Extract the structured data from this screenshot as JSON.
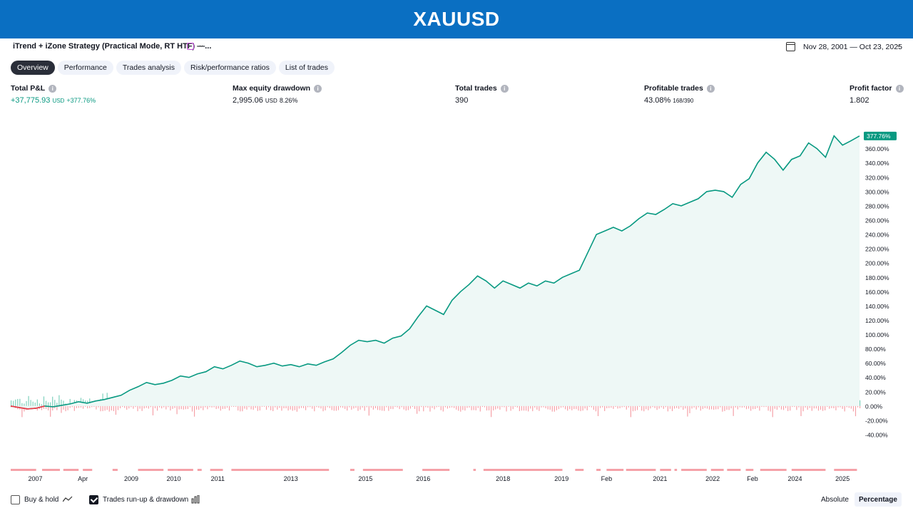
{
  "banner": {
    "title": "XAUUSD"
  },
  "strategy": {
    "name": "iTrend + iZone Strategy (Practical Mode, RT HTF) —..."
  },
  "date_range": "Nov 28, 2001 — Oct 23, 2025",
  "tabs": [
    {
      "label": "Overview",
      "active": true
    },
    {
      "label": "Performance",
      "active": false
    },
    {
      "label": "Trades analysis",
      "active": false
    },
    {
      "label": "Risk/performance ratios",
      "active": false
    },
    {
      "label": "List of trades",
      "active": false
    }
  ],
  "metrics": {
    "total_pl": {
      "label": "Total P&L",
      "value": "+37,775.93",
      "unit": "USD",
      "pct": "+377.76%"
    },
    "max_dd": {
      "label": "Max equity drawdown",
      "value": "2,995.06",
      "unit": "USD",
      "pct": "8.26%"
    },
    "total_trades": {
      "label": "Total trades",
      "value": "390"
    },
    "profitable": {
      "label": "Profitable trades",
      "value": "43.08%",
      "sub": "168/390"
    },
    "profit_factor": {
      "label": "Profit factor",
      "value": "1.802"
    }
  },
  "footer": {
    "buy_hold": "Buy & hold",
    "runup": "Trades run-up & drawdown",
    "absolute": "Absolute",
    "percentage": "Percentage"
  },
  "colors": {
    "equity": "#089981",
    "fill": "#eef8f6",
    "loss": "#f23645",
    "runup_bar": "#7fd1bd",
    "drawdown_bar": "#f5a1a8",
    "current_badge": "#089981"
  },
  "chart_data": {
    "type": "line",
    "y_unit": "%",
    "ylim": [
      -40,
      380
    ],
    "y_ticks": [
      "360.00%",
      "340.00%",
      "320.00%",
      "300.00%",
      "280.00%",
      "260.00%",
      "240.00%",
      "220.00%",
      "200.00%",
      "180.00%",
      "160.00%",
      "140.00%",
      "120.00%",
      "100.00%",
      "80.00%",
      "60.00%",
      "40.00%",
      "20.00%",
      "0.00%",
      "-20.00%",
      "-40.00%"
    ],
    "current_value_label": "377.76%",
    "x_labels": [
      {
        "label": "2007",
        "t": 0.029
      },
      {
        "label": "Apr",
        "t": 0.085
      },
      {
        "label": "2009",
        "t": 0.142
      },
      {
        "label": "2010",
        "t": 0.192
      },
      {
        "label": "2011",
        "t": 0.244
      },
      {
        "label": "2013",
        "t": 0.33
      },
      {
        "label": "2015",
        "t": 0.418
      },
      {
        "label": "2016",
        "t": 0.486
      },
      {
        "label": "2018",
        "t": 0.58
      },
      {
        "label": "2019",
        "t": 0.649
      },
      {
        "label": "Feb",
        "t": 0.702
      },
      {
        "label": "2021",
        "t": 0.765
      },
      {
        "label": "2022",
        "t": 0.827
      },
      {
        "label": "Feb",
        "t": 0.874
      },
      {
        "label": "2024",
        "t": 0.924
      },
      {
        "label": "2025",
        "t": 0.98
      }
    ],
    "series": [
      {
        "values": [
          [
            0.0,
            0
          ],
          [
            0.01,
            -2
          ],
          [
            0.02,
            -4
          ],
          [
            0.03,
            -3
          ],
          [
            0.04,
            0
          ],
          [
            0.05,
            -1
          ],
          [
            0.06,
            1
          ],
          [
            0.07,
            3
          ],
          [
            0.08,
            6
          ],
          [
            0.09,
            4
          ],
          [
            0.1,
            7
          ],
          [
            0.11,
            9
          ],
          [
            0.12,
            12
          ],
          [
            0.13,
            15
          ],
          [
            0.14,
            22
          ],
          [
            0.15,
            27
          ],
          [
            0.16,
            33
          ],
          [
            0.17,
            30
          ],
          [
            0.18,
            32
          ],
          [
            0.19,
            36
          ],
          [
            0.2,
            42
          ],
          [
            0.21,
            40
          ],
          [
            0.22,
            45
          ],
          [
            0.23,
            48
          ],
          [
            0.24,
            55
          ],
          [
            0.25,
            52
          ],
          [
            0.26,
            57
          ],
          [
            0.27,
            63
          ],
          [
            0.28,
            60
          ],
          [
            0.29,
            55
          ],
          [
            0.3,
            57
          ],
          [
            0.31,
            60
          ],
          [
            0.32,
            56
          ],
          [
            0.33,
            58
          ],
          [
            0.34,
            55
          ],
          [
            0.35,
            59
          ],
          [
            0.36,
            57
          ],
          [
            0.37,
            62
          ],
          [
            0.38,
            66
          ],
          [
            0.39,
            75
          ],
          [
            0.4,
            85
          ],
          [
            0.41,
            92
          ],
          [
            0.42,
            90
          ],
          [
            0.43,
            92
          ],
          [
            0.44,
            88
          ],
          [
            0.45,
            95
          ],
          [
            0.46,
            98
          ],
          [
            0.47,
            108
          ],
          [
            0.48,
            125
          ],
          [
            0.49,
            140
          ],
          [
            0.5,
            134
          ],
          [
            0.51,
            128
          ],
          [
            0.52,
            148
          ],
          [
            0.53,
            160
          ],
          [
            0.54,
            170
          ],
          [
            0.55,
            182
          ],
          [
            0.56,
            175
          ],
          [
            0.57,
            165
          ],
          [
            0.58,
            175
          ],
          [
            0.59,
            170
          ],
          [
            0.6,
            165
          ],
          [
            0.61,
            172
          ],
          [
            0.62,
            168
          ],
          [
            0.63,
            175
          ],
          [
            0.64,
            172
          ],
          [
            0.65,
            180
          ],
          [
            0.66,
            185
          ],
          [
            0.67,
            190
          ],
          [
            0.68,
            215
          ],
          [
            0.69,
            240
          ],
          [
            0.7,
            245
          ],
          [
            0.71,
            250
          ],
          [
            0.72,
            245
          ],
          [
            0.73,
            252
          ],
          [
            0.74,
            262
          ],
          [
            0.75,
            270
          ],
          [
            0.76,
            268
          ],
          [
            0.77,
            275
          ],
          [
            0.78,
            283
          ],
          [
            0.79,
            280
          ],
          [
            0.8,
            285
          ],
          [
            0.81,
            290
          ],
          [
            0.82,
            300
          ],
          [
            0.83,
            302
          ],
          [
            0.84,
            300
          ],
          [
            0.85,
            292
          ],
          [
            0.86,
            310
          ],
          [
            0.87,
            318
          ],
          [
            0.88,
            340
          ],
          [
            0.89,
            355
          ],
          [
            0.9,
            345
          ],
          [
            0.91,
            330
          ],
          [
            0.92,
            345
          ],
          [
            0.93,
            350
          ],
          [
            0.94,
            368
          ],
          [
            0.95,
            360
          ],
          [
            0.96,
            348
          ],
          [
            0.97,
            378
          ],
          [
            0.98,
            365
          ],
          [
            0.99,
            371
          ],
          [
            1.0,
            377.76
          ]
        ]
      }
    ]
  }
}
